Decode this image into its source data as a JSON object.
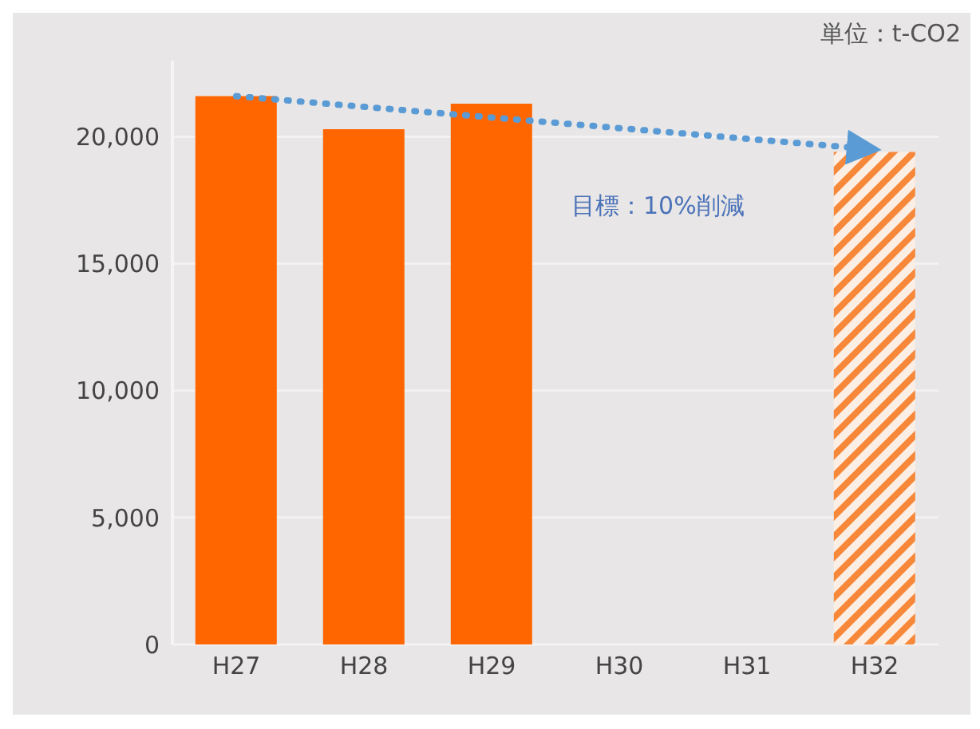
{
  "chart_data": {
    "type": "bar",
    "stacked": true,
    "categories": [
      "H27",
      "H28",
      "H29",
      "H30",
      "H31",
      "H32"
    ],
    "series": [
      {
        "values": [
          21600,
          20300,
          21300,
          null,
          null,
          null
        ],
        "color": "#ff6600"
      },
      {
        "values": [
          null,
          null,
          null,
          null,
          null,
          19400
        ],
        "color": "#f7883a"
      },
      {
        "type": "line",
        "x": [
          "H27",
          "H32"
        ],
        "values": [
          21600,
          19500
        ],
        "color": "#5b9bd5",
        "line_style": "dotted"
      }
    ],
    "ylim": [
      0,
      23000
    ],
    "yticks": [
      {
        "value": 0,
        "label": "0"
      },
      {
        "value": 5000,
        "label": "5,000"
      },
      {
        "value": 10000,
        "label": "10,000"
      },
      {
        "value": 15000,
        "label": "15,000"
      },
      {
        "value": 20000,
        "label": "20,000"
      }
    ],
    "grid": "y",
    "annotations": [
      "目標：10%削減",
      "単位：t-CO2"
    ]
  }
}
